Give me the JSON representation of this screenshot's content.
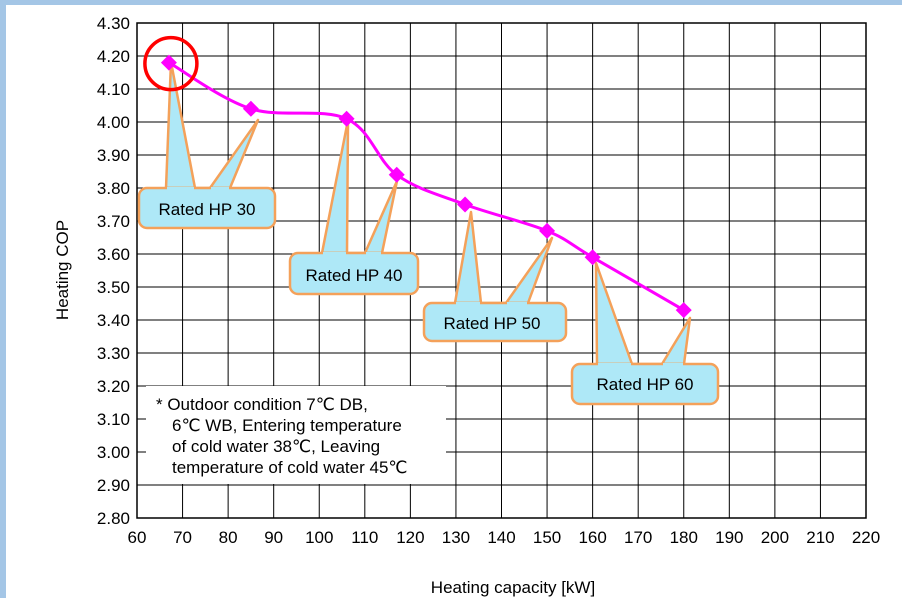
{
  "chart_data": {
    "type": "line",
    "title": "",
    "xlabel": "Heating capacity [kW]",
    "ylabel": "Heating COP",
    "xlim": [
      60,
      220
    ],
    "ylim": [
      2.8,
      4.3
    ],
    "x_ticks": [
      "60",
      "70",
      "80",
      "90",
      "100",
      "110",
      "120",
      "130",
      "140",
      "150",
      "160",
      "170",
      "180",
      "190",
      "200",
      "210",
      "220"
    ],
    "y_ticks": [
      "2.80",
      "2.90",
      "3.00",
      "3.10",
      "3.20",
      "3.30",
      "3.40",
      "3.50",
      "3.60",
      "3.70",
      "3.80",
      "3.90",
      "4.00",
      "4.10",
      "4.20",
      "4.30"
    ],
    "grid": true,
    "series": [
      {
        "color": "#ff00ff",
        "marker": "diamond",
        "points": [
          {
            "x": 67,
            "y": 4.18
          },
          {
            "x": 85,
            "y": 4.04
          },
          {
            "x": 106,
            "y": 4.01
          },
          {
            "x": 117,
            "y": 3.84
          },
          {
            "x": 132,
            "y": 3.75
          },
          {
            "x": 150,
            "y": 3.67
          },
          {
            "x": 160,
            "y": 3.59
          },
          {
            "x": 180,
            "y": 3.43
          }
        ]
      }
    ],
    "highlight": {
      "x": 67,
      "y": 4.18,
      "color": "#ff0000"
    },
    "callouts": [
      {
        "label": "Rated HP 30",
        "fill": "#aee8f7",
        "border": "#f4a15a"
      },
      {
        "label": "Rated HP 40",
        "fill": "#aee8f7",
        "border": "#f4a15a"
      },
      {
        "label": "Rated HP 50",
        "fill": "#aee8f7",
        "border": "#f4a15a"
      },
      {
        "label": "Rated HP 60",
        "fill": "#aee8f7",
        "border": "#f4a15a"
      }
    ],
    "note": [
      "* Outdoor condition 7℃ DB,",
      "6℃ WB, Entering temperature",
      "of cold water 38℃, Leaving",
      "temperature of cold water 45℃"
    ]
  }
}
